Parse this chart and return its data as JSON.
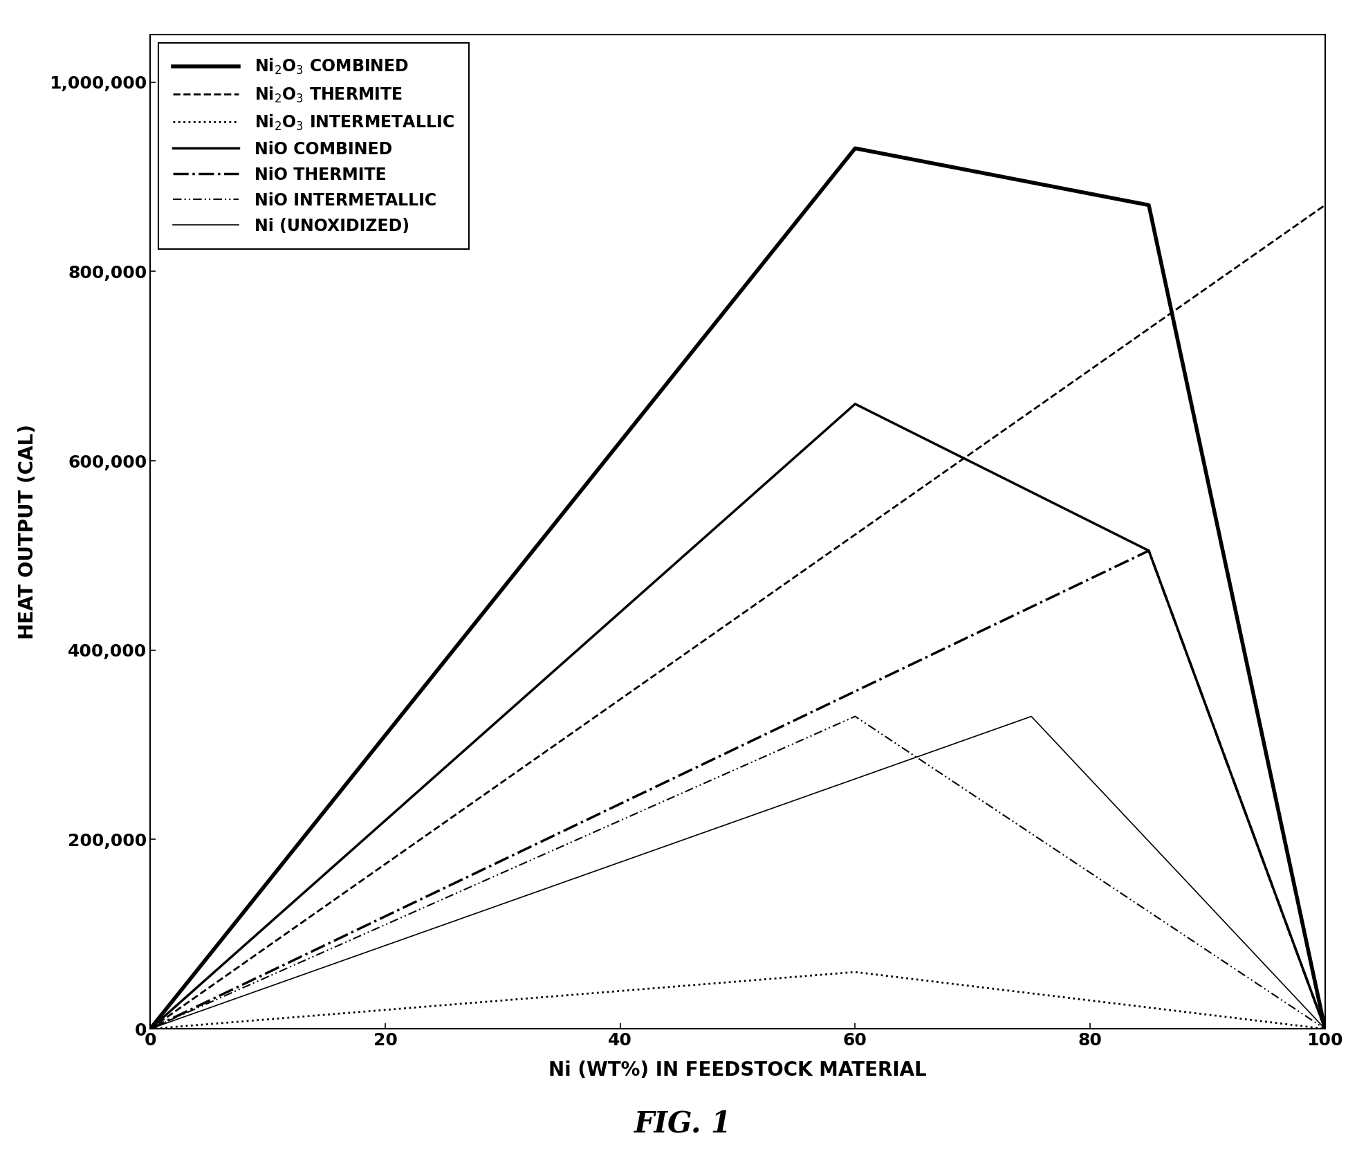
{
  "title": "FIG. 1",
  "xlabel": "Ni (WT%) IN FEEDSTOCK MATERIAL",
  "ylabel": "HEAT OUTPUT (CAL)",
  "xlim": [
    0,
    100
  ],
  "ylim": [
    0,
    1050000
  ],
  "yticks": [
    0,
    200000,
    400000,
    600000,
    800000,
    1000000
  ],
  "xticks": [
    0,
    20,
    40,
    60,
    80,
    100
  ],
  "series": [
    {
      "label": "Ni2O3_COMBINED",
      "x": [
        0,
        60,
        85,
        100
      ],
      "y": [
        0,
        930000,
        870000,
        0
      ],
      "linestyle": "solid",
      "linewidth": 4.0,
      "color": "#000000",
      "legend_lw": 4.0,
      "legend_ls": "solid"
    },
    {
      "label": "Ni2O3_THERMITE",
      "x": [
        0,
        100
      ],
      "y": [
        0,
        870000
      ],
      "linestyle": "dashed",
      "linewidth": 2.0,
      "color": "#000000",
      "legend_lw": 2.0,
      "legend_ls": "dashed"
    },
    {
      "label": "Ni2O3_INTERMETALLIC",
      "x": [
        0,
        60,
        100
      ],
      "y": [
        0,
        60000,
        0
      ],
      "linestyle": "dotted",
      "linewidth": 2.0,
      "color": "#000000",
      "legend_lw": 2.0,
      "legend_ls": "dotted"
    },
    {
      "label": "NiO_COMBINED",
      "x": [
        0,
        60,
        85,
        100
      ],
      "y": [
        0,
        660000,
        505000,
        0
      ],
      "linestyle": "solid",
      "linewidth": 2.5,
      "color": "#000000",
      "legend_lw": 2.5,
      "legend_ls": "solid"
    },
    {
      "label": "NiO_THERMITE",
      "x": [
        0,
        85,
        100
      ],
      "y": [
        0,
        505000,
        0
      ],
      "linestyle": "dashdot",
      "linewidth": 2.5,
      "color": "#000000",
      "legend_lw": 2.5,
      "legend_ls": "dashdot"
    },
    {
      "label": "NiO_INTERMETALLIC",
      "x": [
        0,
        60,
        100
      ],
      "y": [
        0,
        330000,
        0
      ],
      "linestyle": "loosely_dashdotdot",
      "linewidth": 1.5,
      "color": "#000000",
      "legend_lw": 1.5,
      "legend_ls": "loosely_dashdotdot"
    },
    {
      "label": "Ni_UNOXIDIZED",
      "x": [
        0,
        75,
        100
      ],
      "y": [
        0,
        330000,
        0
      ],
      "linestyle": "solid",
      "linewidth": 1.2,
      "color": "#000000",
      "legend_lw": 1.2,
      "legend_ls": "solid"
    }
  ],
  "legend_labels_math": [
    "Ni$_2$O$_3$ COMBINED",
    "Ni$_2$O$_3$ THERMITE",
    "Ni$_2$O$_3$ INTERMETALLIC",
    "NiO COMBINED",
    "NiO THERMITE",
    "NiO INTERMETALLIC",
    "Ni (UNOXIDIZED)"
  ],
  "background_color": "#ffffff",
  "legend_fontsize": 17,
  "axis_label_fontsize": 20,
  "tick_fontsize": 18,
  "title_fontsize": 30
}
